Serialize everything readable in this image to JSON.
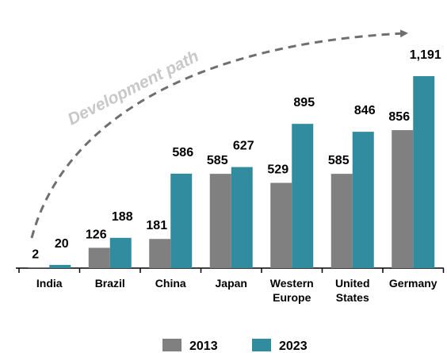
{
  "chart_data": {
    "type": "bar",
    "annotation": "Development path",
    "categories": [
      "India",
      "Brazil",
      "China",
      "Japan",
      "Western Europe",
      "United States",
      "Germany"
    ],
    "series": [
      {
        "name": "2013",
        "color": "#808080",
        "values": [
          2,
          126,
          181,
          585,
          529,
          585,
          856
        ]
      },
      {
        "name": "2023",
        "color": "#318ca0",
        "values": [
          20,
          188,
          586,
          627,
          895,
          846,
          1191
        ],
        "value_labels": [
          "20",
          "188",
          "586",
          "627",
          "895",
          "846",
          "1,191"
        ]
      }
    ],
    "legend": "bottom"
  }
}
